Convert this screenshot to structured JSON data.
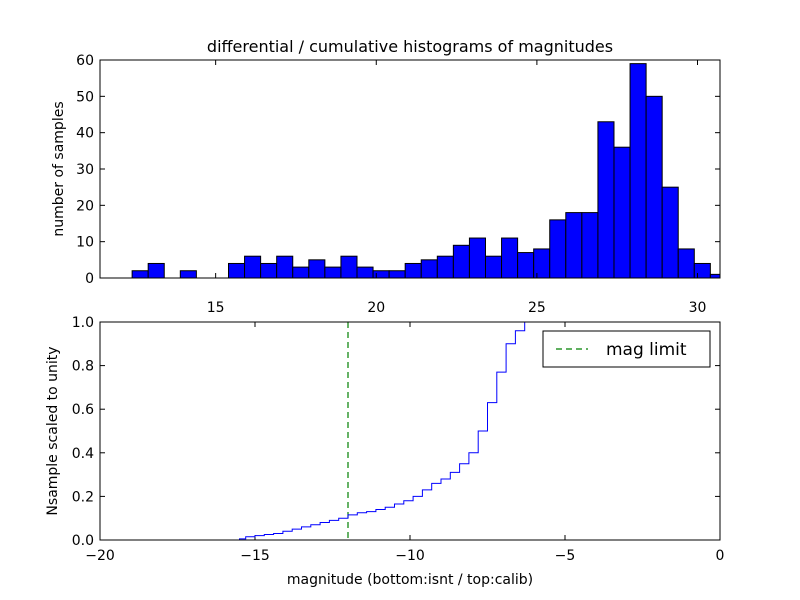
{
  "chart_data": [
    {
      "type": "bar",
      "title": "differential / cumulative histograms of magnitudes",
      "xlabel": "",
      "ylabel": "number of samples",
      "xlim": [
        11.4,
        30.7
      ],
      "ylim": [
        0,
        60
      ],
      "bin_width": 0.5,
      "bar_color": "#0000ff",
      "xticks": [
        15,
        20,
        25,
        30
      ],
      "yticks": [
        0,
        10,
        20,
        30,
        40,
        50,
        60
      ],
      "bins": [
        {
          "x": 11.9,
          "value": 0
        },
        {
          "x": 12.4,
          "value": 2
        },
        {
          "x": 12.9,
          "value": 4
        },
        {
          "x": 13.4,
          "value": 0
        },
        {
          "x": 13.9,
          "value": 2
        },
        {
          "x": 14.4,
          "value": 0
        },
        {
          "x": 14.9,
          "value": 0
        },
        {
          "x": 15.4,
          "value": 4
        },
        {
          "x": 15.9,
          "value": 6
        },
        {
          "x": 16.4,
          "value": 4
        },
        {
          "x": 16.9,
          "value": 6
        },
        {
          "x": 17.4,
          "value": 3
        },
        {
          "x": 17.9,
          "value": 5
        },
        {
          "x": 18.4,
          "value": 3
        },
        {
          "x": 18.9,
          "value": 6
        },
        {
          "x": 19.4,
          "value": 3
        },
        {
          "x": 19.9,
          "value": 2
        },
        {
          "x": 20.4,
          "value": 2
        },
        {
          "x": 20.9,
          "value": 4
        },
        {
          "x": 21.4,
          "value": 5
        },
        {
          "x": 21.9,
          "value": 6
        },
        {
          "x": 22.4,
          "value": 9
        },
        {
          "x": 22.9,
          "value": 11
        },
        {
          "x": 23.4,
          "value": 6
        },
        {
          "x": 23.9,
          "value": 11
        },
        {
          "x": 24.4,
          "value": 7
        },
        {
          "x": 24.9,
          "value": 8
        },
        {
          "x": 25.4,
          "value": 16
        },
        {
          "x": 25.9,
          "value": 18
        },
        {
          "x": 26.4,
          "value": 18
        },
        {
          "x": 26.9,
          "value": 43
        },
        {
          "x": 27.4,
          "value": 36
        },
        {
          "x": 27.9,
          "value": 59
        },
        {
          "x": 28.4,
          "value": 50
        },
        {
          "x": 28.9,
          "value": 25
        },
        {
          "x": 29.4,
          "value": 8
        },
        {
          "x": 29.9,
          "value": 4
        },
        {
          "x": 30.4,
          "value": 1
        }
      ]
    },
    {
      "type": "line",
      "title": "",
      "xlabel": "magnitude (bottom:isnt / top:calib)",
      "ylabel": "Nsample scaled to unity",
      "xlim": [
        -20,
        0
      ],
      "ylim": [
        0,
        1.0
      ],
      "xticks": [
        -20,
        -15,
        -10,
        -5,
        0
      ],
      "xtick_labels": [
        "−20",
        "−15",
        "−10",
        "−5",
        "0"
      ],
      "yticks": [
        0,
        0.2,
        0.4,
        0.6,
        0.8,
        1.0
      ],
      "ytick_labels": [
        "0.0",
        "0.2",
        "0.4",
        "0.6",
        "0.8",
        "1.0"
      ],
      "series": [
        {
          "color": "#0000ff",
          "step": true,
          "x": [
            -20,
            -15.5,
            -15.3,
            -15.0,
            -14.7,
            -14.4,
            -14.1,
            -13.8,
            -13.5,
            -13.2,
            -12.9,
            -12.6,
            -12.3,
            -12.0,
            -11.7,
            -11.4,
            -11.1,
            -10.8,
            -10.5,
            -10.2,
            -9.9,
            -9.6,
            -9.3,
            -9.0,
            -8.7,
            -8.4,
            -8.1,
            -7.8,
            -7.5,
            -7.2,
            -6.9,
            -6.6,
            -6.3,
            0
          ],
          "y": [
            0,
            0.005,
            0.015,
            0.02,
            0.025,
            0.03,
            0.04,
            0.05,
            0.06,
            0.07,
            0.08,
            0.09,
            0.1,
            0.115,
            0.125,
            0.13,
            0.14,
            0.15,
            0.165,
            0.18,
            0.2,
            0.23,
            0.26,
            0.28,
            0.31,
            0.35,
            0.4,
            0.5,
            0.63,
            0.77,
            0.9,
            0.96,
            1.0,
            1.0
          ]
        }
      ],
      "reference_line": {
        "x": -12.0,
        "color": "#008000",
        "style": "dashed",
        "label": "mag limit"
      },
      "legend": {
        "placement": "top-right",
        "entries": [
          "mag limit"
        ]
      }
    }
  ]
}
